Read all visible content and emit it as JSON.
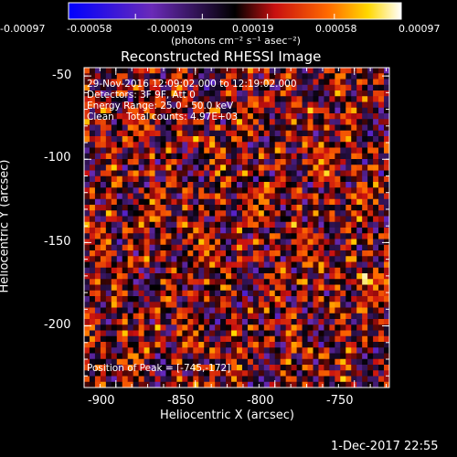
{
  "colorbar": {
    "tick_labels": [
      "-0.00097",
      "-0.00058",
      "-0.00019",
      "0.00019",
      "0.00058",
      "0.00097"
    ],
    "units_label": "(photons cm⁻² s⁻¹ asec⁻²)",
    "range": [
      -0.00097,
      0.00097
    ]
  },
  "chart_data": {
    "type": "heatmap",
    "title": "Reconstructed RHESSI Image",
    "xlabel": "Heliocentric X (arcsec)",
    "ylabel": "Heliocentric Y (arcsec)",
    "xlim": [
      -920,
      -728
    ],
    "ylim": [
      -237,
      -45
    ],
    "x_ticks": [
      -900,
      -850,
      -800,
      -750
    ],
    "y_ticks": [
      -50,
      -100,
      -150,
      -200
    ],
    "annotations": [
      "29-Nov-2016 12:09:02.000 to 12:19:02.000",
      "Detectors: 3F 9F, Att 0",
      "Energy Range: 25.0 - 50.0 keV",
      "Clean    Total counts: 4.97E+03"
    ],
    "peak_label": "Position of Peak = [-745,-172]",
    "peak": [
      -745,
      -172
    ],
    "colormap": [
      "#0000ff",
      "#7a2fb8",
      "#000000",
      "#d01010",
      "#ff5a00",
      "#ffe000",
      "#ffffff"
    ]
  },
  "timestamp": "1-Dec-2017 22:55"
}
